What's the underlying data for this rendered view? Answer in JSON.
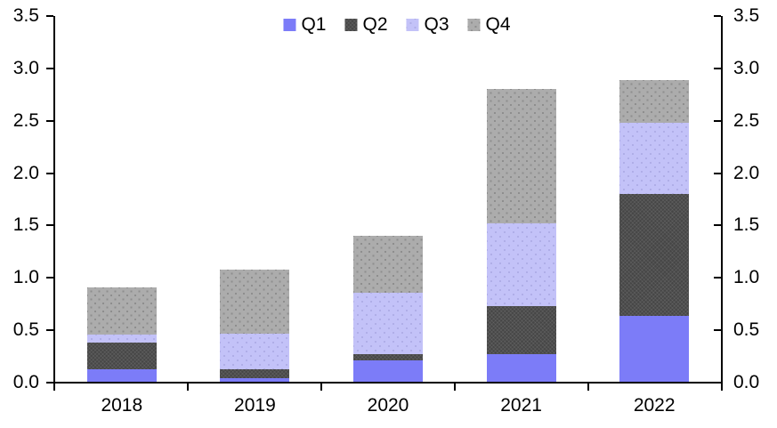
{
  "chart_data": {
    "type": "bar",
    "stacked": true,
    "title": "",
    "categories": [
      "2018",
      "2019",
      "2020",
      "2021",
      "2022"
    ],
    "series": [
      {
        "name": "Q1",
        "color": "#7C7CF8",
        "values": [
          0.13,
          0.04,
          0.21,
          0.27,
          0.64
        ]
      },
      {
        "name": "Q2",
        "color": "#464646",
        "values": [
          0.25,
          0.09,
          0.06,
          0.46,
          1.16
        ]
      },
      {
        "name": "Q3",
        "color": "#C3C2F8",
        "values": [
          0.08,
          0.34,
          0.59,
          0.79,
          0.68
        ]
      },
      {
        "name": "Q4",
        "color": "#ACACAC",
        "values": [
          0.45,
          0.61,
          0.54,
          1.28,
          0.41
        ]
      }
    ],
    "totals": [
      0.91,
      1.08,
      1.4,
      2.8,
      2.89
    ],
    "xlabel": "",
    "ylabel": "",
    "ylim": [
      0.0,
      3.5
    ],
    "yticks_left": [
      "0.0",
      "0.5",
      "1.0",
      "1.5",
      "2.0",
      "2.5",
      "3.0",
      "3.5"
    ],
    "yticks_right": [
      "0.0",
      "0.5",
      "1.0",
      "1.5",
      "2.0",
      "2.5",
      "3.0",
      "3.5"
    ],
    "grid": false,
    "legend_position": "top",
    "legend_labels": [
      "Q1",
      "Q2",
      "Q3",
      "Q4"
    ],
    "axis_color": "#000000",
    "background_color": "#FFFFFF"
  }
}
